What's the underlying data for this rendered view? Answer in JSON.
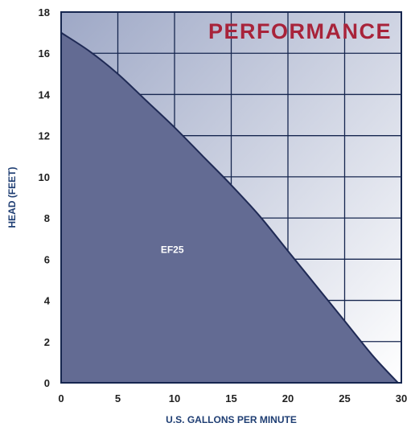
{
  "chart_data": {
    "type": "area",
    "title": "PERFORMANCE",
    "xlabel": "U.S. GALLONS PER MINUTE",
    "ylabel": "HEAD (FEET)",
    "xlim": [
      0,
      30
    ],
    "ylim": [
      0,
      18
    ],
    "xticks": [
      0,
      5,
      10,
      15,
      20,
      25,
      30
    ],
    "yticks": [
      0,
      2,
      4,
      6,
      8,
      10,
      12,
      14,
      16,
      18
    ],
    "grid": true,
    "series": [
      {
        "name": "EF25",
        "x": [
          0,
          2.5,
          5,
          7.5,
          10,
          12.5,
          15,
          17.5,
          20,
          22.5,
          25,
          27.5,
          29.7
        ],
        "y": [
          17,
          16.1,
          15,
          13.7,
          12.4,
          11,
          9.6,
          8.1,
          6.4,
          4.7,
          3.0,
          1.3,
          0
        ]
      }
    ],
    "colors": {
      "area": "#636b93",
      "curve": "#1f2a55",
      "grid": "#16264f",
      "bg_top": "#9ea8c6",
      "bg_bottom": "#ffffff",
      "title": "#a8233a",
      "axis_title": "#1f3e73"
    }
  }
}
